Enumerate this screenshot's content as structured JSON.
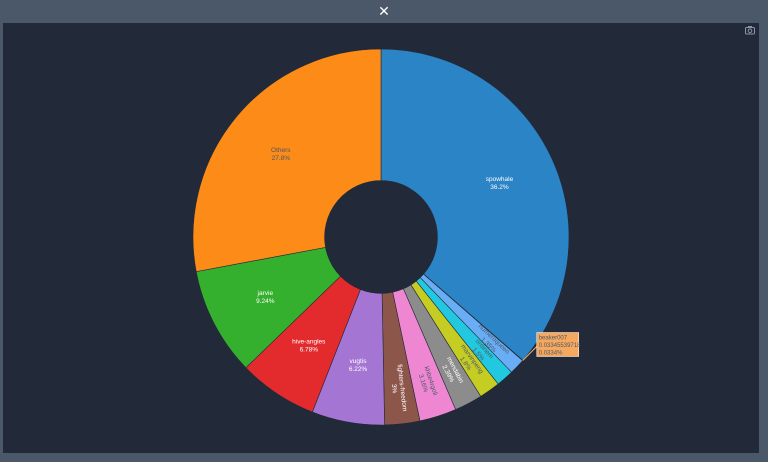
{
  "window": {
    "close_glyph": "✕",
    "camera_icon": "camera-icon"
  },
  "colors": {
    "background": "#222938",
    "frame": "#4b586a"
  },
  "chart_data": {
    "type": "pie",
    "hole": 0.3,
    "direction": "clockwise",
    "start": "12 o'clock",
    "slices": [
      {
        "label": "spowhale",
        "value": 36.2,
        "pct": "36.2%",
        "color": "#2a84c6",
        "text_color": "#ffffff",
        "text": "inside-horizontal"
      },
      {
        "label": "beaker007",
        "value": 0.0334,
        "pct": "0.0334%",
        "color": "#f6a95e",
        "text_color": "#ffffff",
        "text": "none"
      },
      {
        "label": "numeroqueen",
        "value": 1.35,
        "pct": "1.35%",
        "color": "#69aef5",
        "text_color": "#4b586a",
        "text": "radial"
      },
      {
        "label": "ordinem",
        "value": 1.5,
        "pct": "1.5%",
        "color": "#22c8df",
        "text_color": "#4b586a",
        "text": "radial"
      },
      {
        "label": "marvinpeng",
        "value": 1.8,
        "pct": "1.8%",
        "color": "#c6cd22",
        "text_color": "#4b586a",
        "text": "radial"
      },
      {
        "label": "mendabin",
        "value": 2.39,
        "pct": "2.39%",
        "color": "#8c8c8c",
        "text_color": "#ffffff",
        "text": "radial"
      },
      {
        "label": "khbe4rgoli",
        "value": 3.16,
        "pct": "3.16%",
        "color": "#ef86d1",
        "text_color": "#4b586a",
        "text": "radial"
      },
      {
        "label": "fighters-freedom",
        "value": 3.0,
        "pct": "3%",
        "color": "#8d564a",
        "text_color": "#ffffff",
        "text": "radial"
      },
      {
        "label": "vugtis",
        "value": 6.22,
        "pct": "6.22%",
        "color": "#a575d4",
        "text_color": "#ffffff",
        "text": "inside-horizontal"
      },
      {
        "label": "hive-angles",
        "value": 6.78,
        "pct": "6.78%",
        "color": "#e32b2e",
        "text_color": "#ffffff",
        "text": "inside-horizontal"
      },
      {
        "label": "jarvie",
        "value": 9.24,
        "pct": "9.24%",
        "color": "#35b02e",
        "text_color": "#ffffff",
        "text": "inside-horizontal"
      },
      {
        "label": "Others",
        "value": 27.8,
        "pct": "27.8%",
        "color": "#fc8b17",
        "text_color": "#4b586a",
        "text": "inside-horizontal"
      }
    ],
    "hover": {
      "label": "beaker007",
      "value": "0.03345539718",
      "pct": "0.0334%"
    }
  }
}
